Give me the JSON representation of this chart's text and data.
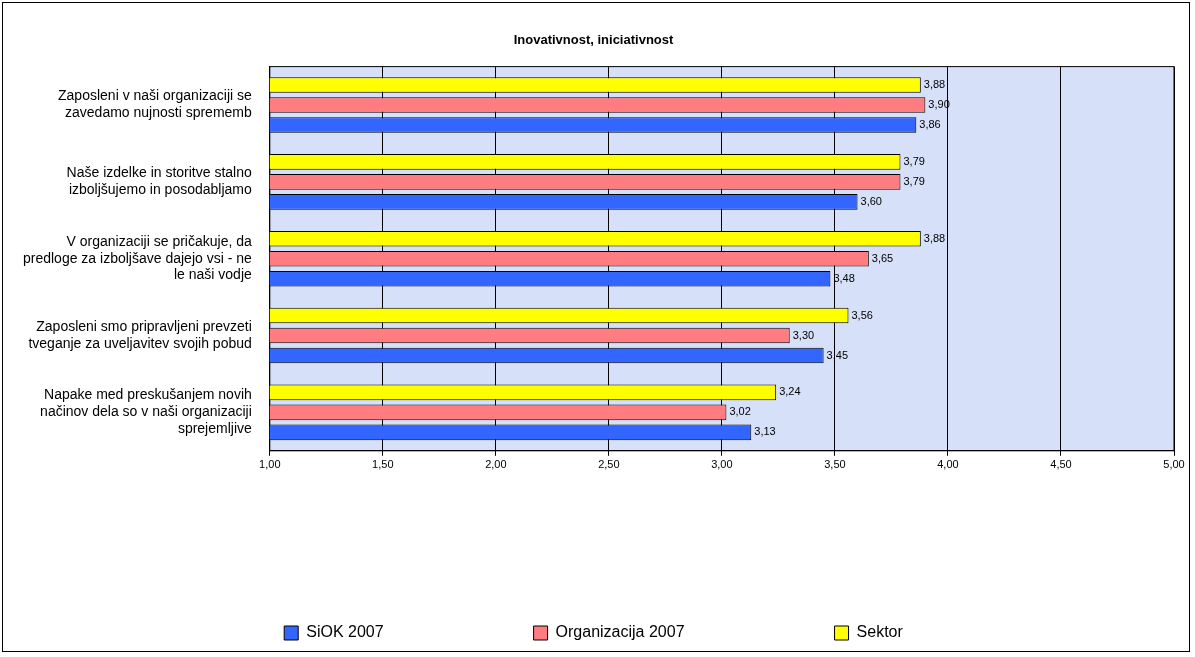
{
  "chart_data": {
    "type": "bar",
    "orientation": "horizontal",
    "title": "Inovativnost, iniciativnost",
    "categories": [
      "Zaposleni v naši organizaciji se zavedamo nujnosti sprememb",
      "Naše izdelke in storitve stalno izboljšujemo in posodabljamo",
      "V organizaciji se pričakuje, da predloge za izboljšave dajejo vsi - ne le naši vodje",
      "Zaposleni smo pripravljeni prevzeti tveganje za uveljavitev svojih pobud",
      "Napake med preskušanjem novih načinov dela so v naši organizaciji sprejemljive"
    ],
    "series": [
      {
        "name": "SiOK 2007",
        "color": "#3366ff",
        "values": [
          3.86,
          3.6,
          3.48,
          3.45,
          3.13
        ],
        "value_labels": [
          "3,86",
          "3,60",
          "3,48",
          "3,45",
          "3,13"
        ]
      },
      {
        "name": "Organizacija 2007",
        "color": "#ff7c80",
        "values": [
          3.9,
          3.79,
          3.65,
          3.3,
          3.02
        ],
        "value_labels": [
          "3,90",
          "3,79",
          "3,65",
          "3,30",
          "3,02"
        ]
      },
      {
        "name": "Sektor",
        "color": "#ffff00",
        "values": [
          3.88,
          3.79,
          3.88,
          3.56,
          3.24
        ],
        "value_labels": [
          "3,88",
          "3,79",
          "3,88",
          "3,56",
          "3,24"
        ]
      }
    ],
    "xlim": [
      1,
      5
    ],
    "xticks": [
      {
        "value": 1,
        "label": "1,00"
      },
      {
        "value": 1.5,
        "label": "1,50"
      },
      {
        "value": 2,
        "label": "2,00"
      },
      {
        "value": 2.5,
        "label": "2,50"
      },
      {
        "value": 3,
        "label": "3,00"
      },
      {
        "value": 3.5,
        "label": "3,50"
      },
      {
        "value": 4,
        "label": "4,00"
      },
      {
        "value": 4.5,
        "label": "4,50"
      },
      {
        "value": 5,
        "label": "5,00"
      }
    ],
    "grid": "x",
    "legend": "bottom"
  }
}
